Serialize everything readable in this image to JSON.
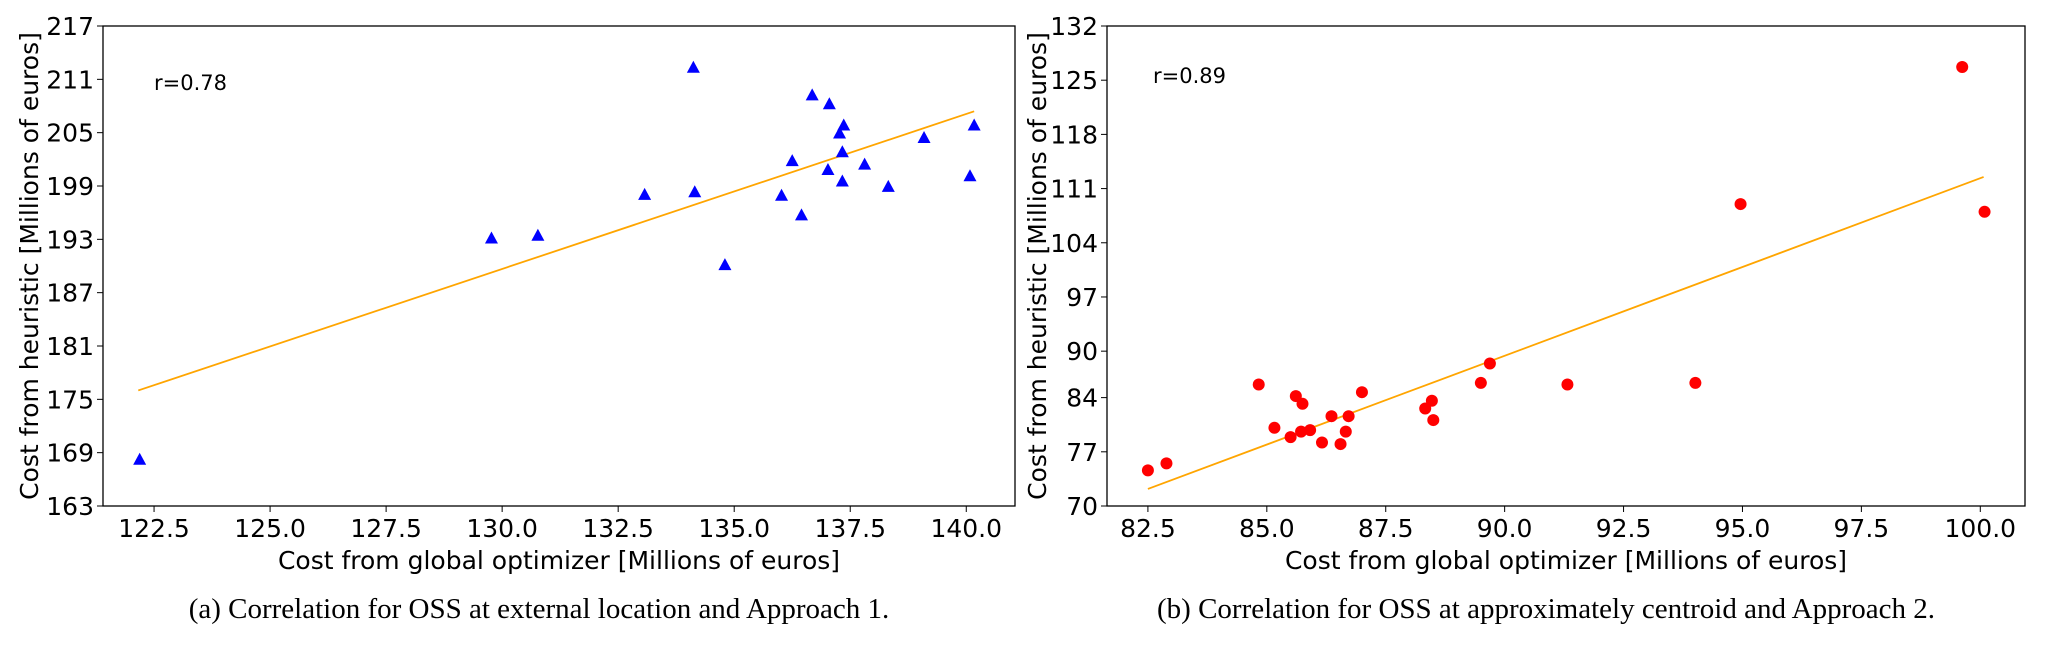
{
  "chart_data": [
    {
      "type": "scatter",
      "x_label": "Cost from global optimizer [Millions of euros]",
      "y_label": "Cost from heuristic [Millions of euros]",
      "annotation": "r=0.78",
      "caption": "(a) Correlation for OSS at external location and Approach 1.",
      "xlim": [
        121.4,
        141.05
      ],
      "ylim": [
        163,
        217
      ],
      "xticks": [
        {
          "value": 122.5,
          "label": "122.5"
        },
        {
          "value": 125,
          "label": "125.0"
        },
        {
          "value": 127.5,
          "label": "127.5"
        },
        {
          "value": 130,
          "label": "130.0"
        },
        {
          "value": 132.5,
          "label": "132.5"
        },
        {
          "value": 135,
          "label": "135.0"
        },
        {
          "value": 137.5,
          "label": "137.5"
        },
        {
          "value": 140,
          "label": "140.0"
        }
      ],
      "yticks": [
        163,
        169,
        175,
        181,
        187,
        193,
        199,
        205,
        211,
        217
      ],
      "marker": "triangle",
      "series": [
        {
          "color": "#0000ff",
          "x": [
            122.19,
            129.77,
            130.77,
            133.07,
            134.12,
            134.15,
            134.8,
            136.02,
            136.25,
            136.45,
            136.68,
            137.02,
            137.05,
            137.27,
            137.33,
            137.36,
            137.33,
            137.81,
            138.32,
            139.09,
            140.08,
            140.17
          ],
          "values": [
            168.2,
            193.1,
            193.4,
            198.0,
            212.3,
            198.3,
            190.1,
            197.9,
            201.8,
            195.7,
            209.2,
            200.8,
            208.2,
            204.9,
            202.8,
            205.8,
            199.5,
            201.4,
            198.9,
            204.4,
            200.1,
            205.8
          ]
        }
      ],
      "trend_line": {
        "color": "#ffa500",
        "x": [
          122.16,
          140.17
        ],
        "values": [
          176.0,
          207.4
        ]
      }
    },
    {
      "type": "scatter",
      "x_label": "Cost from global optimizer [Millions of euros]",
      "y_label": "Cost from heuristic [Millions of euros]",
      "annotation": "r=0.89",
      "caption": "(b) Correlation for OSS at approximately centroid and Approach 2.",
      "xlim": [
        81.64,
        100.94
      ],
      "ylim": [
        70,
        132
      ],
      "xticks": [
        {
          "value": 82.5,
          "label": "82.5"
        },
        {
          "value": 85,
          "label": "85.0"
        },
        {
          "value": 87.5,
          "label": "87.5"
        },
        {
          "value": 90,
          "label": "90.0"
        },
        {
          "value": 92.5,
          "label": "92.5"
        },
        {
          "value": 95,
          "label": "95.0"
        },
        {
          "value": 97.5,
          "label": "97.5"
        },
        {
          "value": 100,
          "label": "100.0"
        }
      ],
      "yticks": [
        70,
        77,
        84,
        90,
        97,
        104,
        111,
        118,
        125,
        132
      ],
      "marker": "circle",
      "series": [
        {
          "color": "#ff0000",
          "x": [
            82.5,
            82.89,
            84.83,
            85.16,
            85.5,
            85.61,
            85.75,
            85.72,
            85.91,
            86.16,
            86.36,
            86.55,
            86.66,
            86.72,
            87.0,
            88.33,
            88.47,
            88.5,
            89.5,
            89.69,
            91.32,
            94.01,
            94.96,
            99.62,
            100.09
          ],
          "values": [
            74.6,
            75.5,
            85.7,
            80.1,
            78.9,
            84.2,
            83.2,
            79.6,
            79.8,
            78.2,
            81.6,
            78.0,
            79.6,
            81.6,
            84.7,
            82.6,
            83.6,
            81.1,
            85.9,
            88.4,
            85.7,
            85.9,
            109.0,
            126.7,
            108.0
          ]
        }
      ],
      "trend_line": {
        "color": "#ffa500",
        "x": [
          82.5,
          100.07
        ],
        "values": [
          72.2,
          112.5
        ]
      }
    }
  ]
}
